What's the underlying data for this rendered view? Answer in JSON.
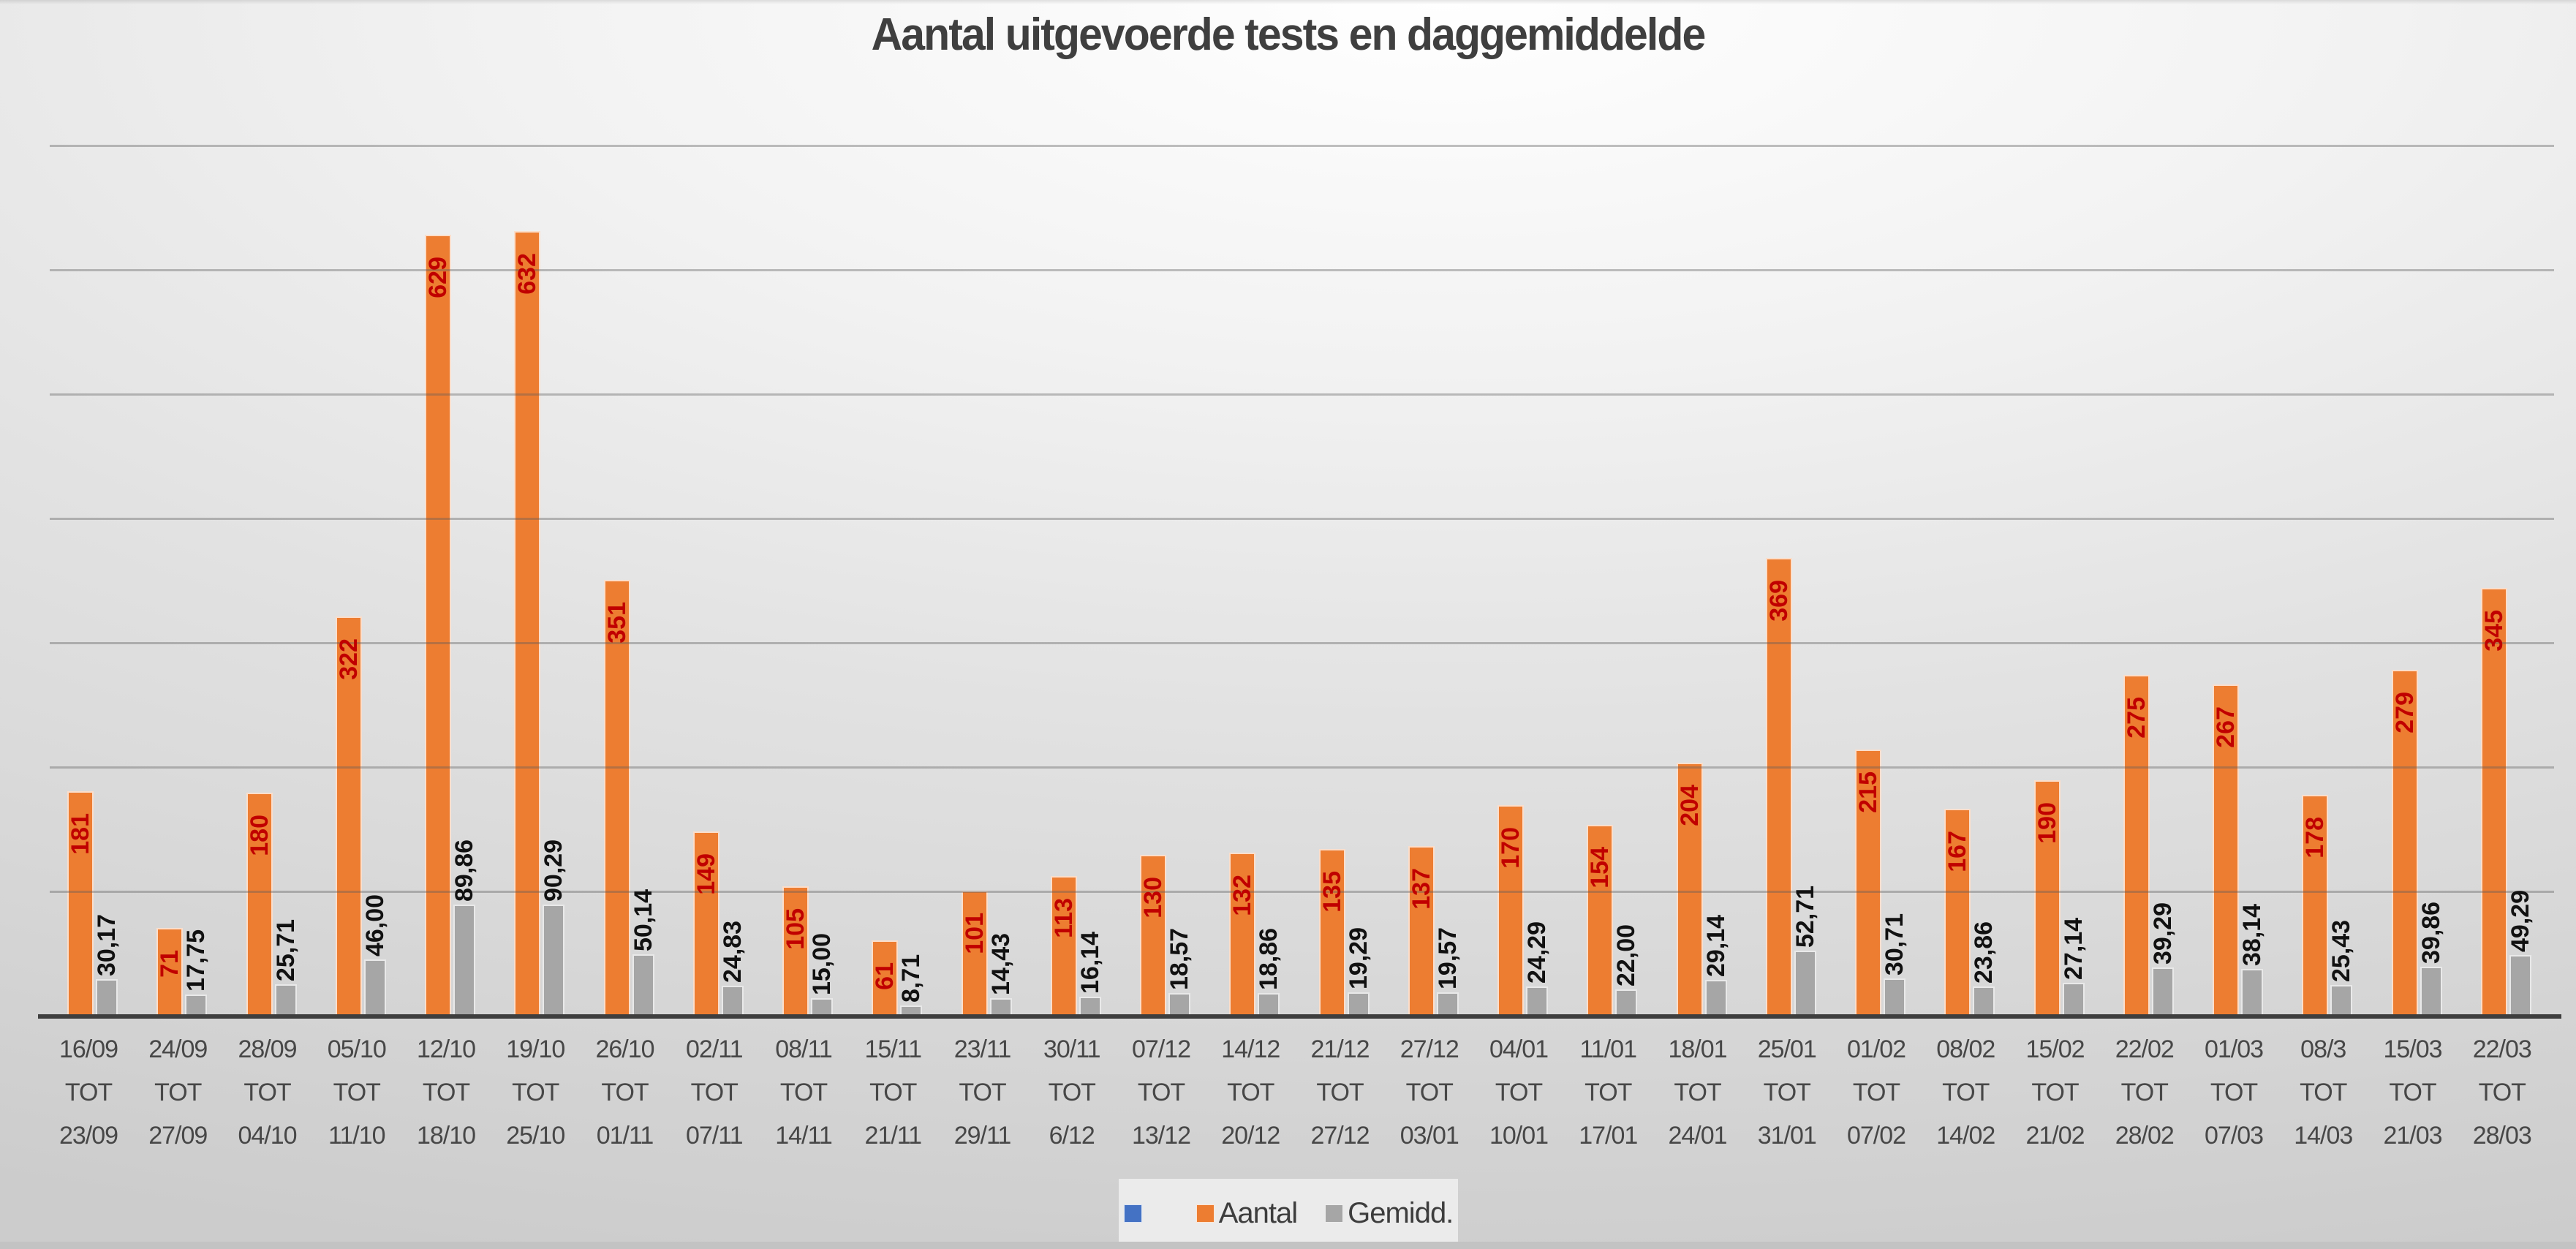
{
  "title": "Aantal uitgevoerde tests en daggemiddelde",
  "colors": {
    "aantal_bar": "#ED7D31",
    "aantal_label": "#C00000",
    "gemidd_bar": "#A6A6A6",
    "gemidd_label": "#111111",
    "unused_series_blue": "#4472C4",
    "gridline": "#9E9E9E",
    "axis_line": "#3E3E3E",
    "title_text": "#3F3F3F",
    "axis_label_text": "#474747",
    "legend_bg": "#EBEBEB"
  },
  "legend": {
    "position": "bottom",
    "entries": [
      {
        "label": "",
        "color": "#4472C4"
      },
      {
        "label": "Aantal",
        "color": "#ED7D31"
      },
      {
        "label": "Gemidd.",
        "color": "#A6A6A6"
      }
    ]
  },
  "chart_data": {
    "type": "bar",
    "title": "Aantal uitgevoerde tests en daggemiddelde",
    "xlabel": "",
    "ylabel": "",
    "ylim": [
      0,
      700
    ],
    "gridline_step": 100,
    "grid": true,
    "y_tick_labels_visible": false,
    "legend_position": "bottom",
    "categories": [
      [
        "16/09",
        "TOT",
        "23/09"
      ],
      [
        "24/09",
        "TOT",
        "27/09"
      ],
      [
        "28/09",
        "TOT",
        "04/10"
      ],
      [
        "05/10",
        "TOT",
        "11/10"
      ],
      [
        "12/10",
        "TOT",
        "18/10"
      ],
      [
        "19/10",
        "TOT",
        "25/10"
      ],
      [
        "26/10",
        "TOT",
        "01/11"
      ],
      [
        "02/11",
        "TOT",
        "07/11"
      ],
      [
        "08/11",
        "TOT",
        "14/11"
      ],
      [
        "15/11",
        "TOT",
        "21/11"
      ],
      [
        "23/11",
        "TOT",
        "29/11"
      ],
      [
        "30/11",
        "TOT",
        "6/12"
      ],
      [
        "07/12",
        "TOT",
        "13/12"
      ],
      [
        "14/12",
        "TOT",
        "20/12"
      ],
      [
        "21/12",
        "TOT",
        "27/12"
      ],
      [
        "27/12",
        "TOT",
        "03/01"
      ],
      [
        "04/01",
        "TOT",
        "10/01"
      ],
      [
        "11/01",
        "TOT",
        "17/01"
      ],
      [
        "18/01",
        "TOT",
        "24/01"
      ],
      [
        "25/01",
        "TOT",
        "31/01"
      ],
      [
        "01/02",
        "TOT",
        "07/02"
      ],
      [
        "08/02",
        "TOT",
        "14/02"
      ],
      [
        "15/02",
        "TOT",
        "21/02"
      ],
      [
        "22/02",
        "TOT",
        "28/02"
      ],
      [
        "01/03",
        "TOT",
        "07/03"
      ],
      [
        "08/3",
        "TOT",
        "14/03"
      ],
      [
        "15/03",
        "TOT",
        "21/03"
      ],
      [
        "22/03",
        "TOT",
        "28/03"
      ]
    ],
    "series": [
      {
        "name": "Aantal",
        "color": "#ED7D31",
        "label_color": "#C00000",
        "values": [
          181,
          71,
          180,
          322,
          629,
          632,
          351,
          149,
          105,
          61,
          101,
          113,
          130,
          132,
          135,
          137,
          170,
          154,
          204,
          369,
          215,
          167,
          190,
          275,
          267,
          178,
          279,
          345
        ],
        "labels": [
          "181",
          "71",
          "180",
          "322",
          "629",
          "632",
          "351",
          "149",
          "105",
          "61",
          "101",
          "113",
          "130",
          "132",
          "135",
          "137",
          "170",
          "154",
          "204",
          "369",
          "215",
          "167",
          "190",
          "275",
          "267",
          "178",
          "279",
          "345"
        ]
      },
      {
        "name": "Gemidd.",
        "color": "#A6A6A6",
        "label_color": "#111111",
        "values": [
          30.17,
          17.75,
          25.71,
          46.0,
          89.86,
          90.29,
          50.14,
          24.83,
          15.0,
          8.71,
          14.43,
          16.14,
          18.57,
          18.86,
          19.29,
          19.57,
          24.29,
          22.0,
          29.14,
          52.71,
          30.71,
          23.86,
          27.14,
          39.29,
          38.14,
          25.43,
          39.86,
          49.29
        ],
        "labels": [
          "30,17",
          "17,75",
          "25,71",
          "46,00",
          "89,86",
          "90,29",
          "50,14",
          "24,83",
          "15,00",
          "8,71",
          "14,43",
          "16,14",
          "18,57",
          "18,86",
          "19,29",
          "19,57",
          "24,29",
          "22,00",
          "29,14",
          "52,71",
          "30,71",
          "23,86",
          "27,14",
          "39,29",
          "38,14",
          "25,43",
          "39,86",
          "49,29"
        ]
      }
    ]
  }
}
